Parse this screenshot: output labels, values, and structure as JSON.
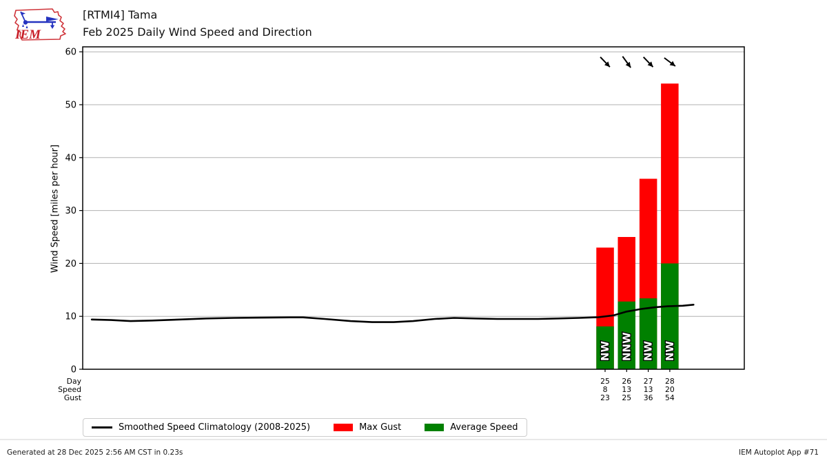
{
  "logo": {
    "text": "IEM",
    "outline_color": "#cf3339",
    "glyph_color": "#2433c0"
  },
  "header": {
    "title_line1": "[RTMI4] Tama",
    "title_line2": "Feb 2025 Daily Wind Speed and Direction"
  },
  "chart_data": {
    "type": "bar",
    "title": "Feb 2025 Daily Wind Speed and Direction",
    "station": "[RTMI4] Tama",
    "ylabel": "Wind Speed [miles per hour]",
    "ylim": [
      0,
      61
    ],
    "yticks": [
      0,
      10,
      20,
      30,
      40,
      50,
      60
    ],
    "x_axis": {
      "unit": "day of month",
      "range": [
        1,
        28
      ]
    },
    "grid": "horizontal",
    "colors": {
      "max_gust": "#ff0000",
      "average_speed": "#008000",
      "climatology": "#000000",
      "gridline": "#b0b0b0",
      "direction_label_fill": "#ffffff",
      "direction_label_outline": "#000000"
    },
    "row_labels": {
      "day": "Day",
      "speed": "Speed",
      "gust": "Gust"
    },
    "bars": [
      {
        "day": 25,
        "speed": 8,
        "gust": 23,
        "speed_plotted": 8.1,
        "direction": "NW",
        "arrow_toward_deg": 136
      },
      {
        "day": 26,
        "speed": 13,
        "gust": 25,
        "speed_plotted": 12.8,
        "direction": "NNW",
        "arrow_toward_deg": 144
      },
      {
        "day": 27,
        "speed": 13,
        "gust": 36,
        "speed_plotted": 13.4,
        "direction": "NW",
        "arrow_toward_deg": 136
      },
      {
        "day": 28,
        "speed": 20,
        "gust": 54,
        "speed_plotted": 20.0,
        "direction": "NW",
        "arrow_toward_deg": 127
      }
    ],
    "climatology": {
      "name": "Smoothed Speed Climatology (2008-2025)",
      "points": [
        [
          1.2,
          9.4
        ],
        [
          2.1,
          9.3
        ],
        [
          3.0,
          9.1
        ],
        [
          4.0,
          9.2
        ],
        [
          5.3,
          9.4
        ],
        [
          6.5,
          9.6
        ],
        [
          7.8,
          9.7
        ],
        [
          9.1,
          9.75
        ],
        [
          10.4,
          9.8
        ],
        [
          11.0,
          9.8
        ],
        [
          12.0,
          9.5
        ],
        [
          13.2,
          9.1
        ],
        [
          14.2,
          8.9
        ],
        [
          15.2,
          8.9
        ],
        [
          16.1,
          9.1
        ],
        [
          17.1,
          9.5
        ],
        [
          18.0,
          9.7
        ],
        [
          19.0,
          9.6
        ],
        [
          20.0,
          9.5
        ],
        [
          20.9,
          9.5
        ],
        [
          21.9,
          9.5
        ],
        [
          22.8,
          9.6
        ],
        [
          23.8,
          9.7
        ],
        [
          24.7,
          9.85
        ],
        [
          25.4,
          10.2
        ],
        [
          26.0,
          10.9
        ],
        [
          26.7,
          11.4
        ],
        [
          27.3,
          11.7
        ],
        [
          27.9,
          11.9
        ],
        [
          28.6,
          12.0
        ],
        [
          29.1,
          12.2
        ]
      ]
    }
  },
  "legend": {
    "items": [
      {
        "label": "Smoothed Speed Climatology (2008-2025)",
        "swatch": "line",
        "color": "#000000"
      },
      {
        "label": "Max Gust",
        "swatch": "rect",
        "color": "#ff0000"
      },
      {
        "label": "Average Speed",
        "swatch": "rect",
        "color": "#008000"
      }
    ]
  },
  "footer": {
    "left": "Generated at 28 Dec 2025 2:56 AM CST in 0.23s",
    "right": "IEM Autoplot App #71"
  }
}
